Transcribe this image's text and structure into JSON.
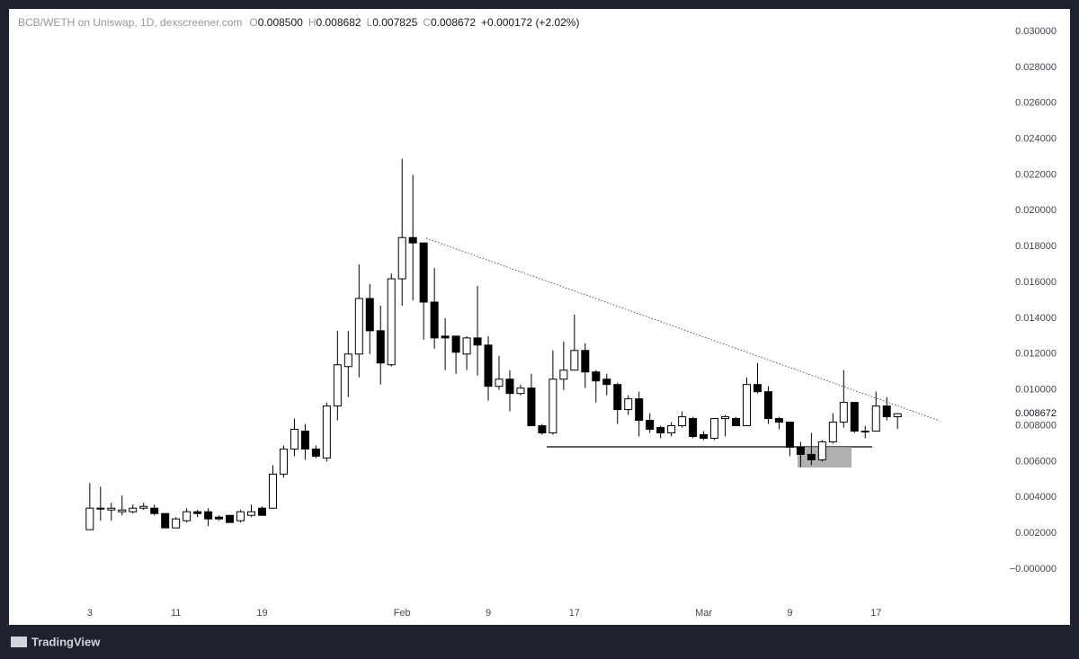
{
  "chart_data": {
    "type": "candlestick",
    "title": "BCB/WETH on Uniswap, 1D, dexscreener.com",
    "ohlc_legend": [
      {
        "label": "O",
        "value": "0.008500"
      },
      {
        "label": "H",
        "value": "0.008682"
      },
      {
        "label": "L",
        "value": "0.007825"
      },
      {
        "label": "C",
        "value": "0.008672"
      }
    ],
    "change": "+0.000172 (+2.02%)",
    "last_price": {
      "value": 0.008672,
      "label": "0.008672"
    },
    "brand": "TradingView",
    "up_color": "#ffffff",
    "down_color": "#000000",
    "border_color": "#000000",
    "open": [
      0.0022,
      0.0034,
      0.0033,
      0.0032,
      0.0032,
      0.0034,
      0.0034,
      0.0031,
      0.0023,
      0.0027,
      0.0032,
      0.0032,
      0.0029,
      0.003,
      0.0027,
      0.003,
      0.0034,
      0.0034,
      0.0053,
      0.0067,
      0.0077,
      0.0067,
      0.0062,
      0.0091,
      0.0113,
      0.012,
      0.0151,
      0.0133,
      0.0114,
      0.0162,
      0.0185,
      0.0182,
      0.0149,
      0.013,
      0.013,
      0.012,
      0.0129,
      0.0125,
      0.0102,
      0.0106,
      0.0098,
      0.0101,
      0.008,
      0.0076,
      0.0106,
      0.0111,
      0.0122,
      0.011,
      0.0106,
      0.0103,
      0.0089,
      0.0095,
      0.0083,
      0.0079,
      0.0076,
      0.008,
      0.0084,
      0.0075,
      0.0073,
      0.0084,
      0.0084,
      0.008,
      0.0103,
      0.0099,
      0.0084,
      0.0082,
      0.0068,
      0.0064,
      0.0061,
      0.0071,
      0.0082,
      0.0093,
      0.0077,
      0.0077,
      0.0091,
      0.0085
    ],
    "high": [
      0.0048,
      0.0046,
      0.0037,
      0.0041,
      0.0036,
      0.0037,
      0.0036,
      0.0031,
      0.0029,
      0.0034,
      0.0033,
      0.0034,
      0.003,
      0.003,
      0.0033,
      0.0036,
      0.0035,
      0.0058,
      0.0069,
      0.0084,
      0.0081,
      0.0069,
      0.0093,
      0.0133,
      0.0133,
      0.017,
      0.0159,
      0.0147,
      0.0165,
      0.0229,
      0.022,
      0.0182,
      0.0168,
      0.014,
      0.013,
      0.013,
      0.0158,
      0.013,
      0.0119,
      0.0111,
      0.0103,
      0.0109,
      0.0081,
      0.0122,
      0.0127,
      0.0142,
      0.0126,
      0.0111,
      0.0109,
      0.0104,
      0.0097,
      0.0099,
      0.0087,
      0.008,
      0.0082,
      0.0088,
      0.0085,
      0.0077,
      0.0084,
      0.0086,
      0.0085,
      0.0107,
      0.0115,
      0.0102,
      0.0085,
      0.0082,
      0.0071,
      0.0076,
      0.0072,
      0.0087,
      0.0111,
      0.0093,
      0.008,
      0.0099,
      0.0096,
      0.008682
    ],
    "low": [
      0.0022,
      0.0027,
      0.0027,
      0.003,
      0.0031,
      0.0033,
      0.003,
      0.0023,
      0.0023,
      0.0026,
      0.0029,
      0.0024,
      0.0027,
      0.0026,
      0.0026,
      0.0029,
      0.003,
      0.0034,
      0.0051,
      0.0063,
      0.0061,
      0.0062,
      0.006,
      0.0083,
      0.0096,
      0.0107,
      0.012,
      0.0103,
      0.0113,
      0.0147,
      0.015,
      0.0128,
      0.0123,
      0.0111,
      0.0109,
      0.0111,
      0.0108,
      0.0094,
      0.01,
      0.0088,
      0.0097,
      0.008,
      0.0075,
      0.0075,
      0.01,
      0.0111,
      0.0101,
      0.0093,
      0.0097,
      0.0081,
      0.0086,
      0.0074,
      0.0076,
      0.0073,
      0.0074,
      0.0079,
      0.0073,
      0.0072,
      0.0072,
      0.0074,
      0.008,
      0.008,
      0.0098,
      0.0081,
      0.0078,
      0.0063,
      0.0057,
      0.0058,
      0.006,
      0.007,
      0.0079,
      0.0076,
      0.0073,
      0.0077,
      0.0083,
      0.007825
    ],
    "close": [
      0.0034,
      0.0034,
      0.0034,
      0.0033,
      0.0034,
      0.0035,
      0.0031,
      0.0023,
      0.0028,
      0.0032,
      0.0031,
      0.0028,
      0.0028,
      0.0026,
      0.0032,
      0.0032,
      0.003,
      0.0053,
      0.0067,
      0.0078,
      0.0067,
      0.0063,
      0.0091,
      0.0114,
      0.012,
      0.0151,
      0.0133,
      0.0115,
      0.0162,
      0.0185,
      0.0182,
      0.0149,
      0.0129,
      0.0129,
      0.0121,
      0.0129,
      0.0125,
      0.0102,
      0.0106,
      0.0098,
      0.0101,
      0.008,
      0.0076,
      0.0106,
      0.0111,
      0.0122,
      0.011,
      0.0105,
      0.0103,
      0.0089,
      0.0095,
      0.0083,
      0.0078,
      0.0076,
      0.008,
      0.0085,
      0.0074,
      0.0073,
      0.0084,
      0.0085,
      0.008,
      0.0103,
      0.0099,
      0.0084,
      0.0082,
      0.0068,
      0.0064,
      0.0061,
      0.0071,
      0.0082,
      0.0093,
      0.0077,
      0.0077,
      0.0091,
      0.0085,
      0.008672
    ],
    "xlim": [
      -7.5,
      83.5
    ],
    "xticks": [
      {
        "value": 0,
        "label": "3"
      },
      {
        "value": 8,
        "label": "11"
      },
      {
        "value": 16,
        "label": "19"
      },
      {
        "value": 29,
        "label": "Feb"
      },
      {
        "value": 37,
        "label": "9"
      },
      {
        "value": 45,
        "label": "17"
      },
      {
        "value": 57,
        "label": "Mar"
      },
      {
        "value": 65,
        "label": "9"
      },
      {
        "value": 73,
        "label": "17"
      }
    ],
    "ylim": [
      0,
      0.03
    ],
    "yticks": [
      {
        "value": 0,
        "label": "−0.000000"
      },
      {
        "value": 0.002,
        "label": "0.002000"
      },
      {
        "value": 0.004,
        "label": "0.004000"
      },
      {
        "value": 0.006,
        "label": "0.006000"
      },
      {
        "value": 0.008,
        "label": "0.008000"
      },
      {
        "value": 0.01,
        "label": "0.010000"
      },
      {
        "value": 0.012,
        "label": "0.012000"
      },
      {
        "value": 0.014,
        "label": "0.014000"
      },
      {
        "value": 0.016,
        "label": "0.016000"
      },
      {
        "value": 0.018,
        "label": "0.018000"
      },
      {
        "value": 0.02,
        "label": "0.020000"
      },
      {
        "value": 0.022,
        "label": "0.022000"
      },
      {
        "value": 0.024,
        "label": "0.024000"
      },
      {
        "value": 0.026,
        "label": "0.026000"
      },
      {
        "value": 0.028,
        "label": "0.028000"
      },
      {
        "value": 0.03,
        "label": "0.030000"
      }
    ],
    "grid": false
  }
}
